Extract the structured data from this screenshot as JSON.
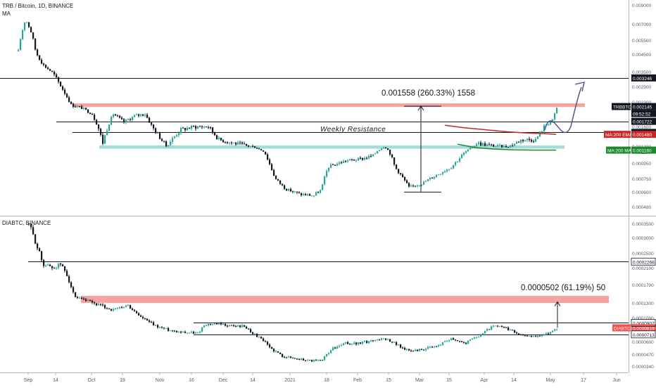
{
  "top_pane": {
    "symbol_line": "TRB / Bitcoin, 1D, BINANCE",
    "indicator_label": "MA"
  },
  "bottom_pane": {
    "symbol_line": "DIABTC, BINANCE"
  },
  "colors": {
    "up": "#26a69a",
    "down": "#131722",
    "resistance_zone": "#f7a1a1",
    "support_zone": "#a3dcd6",
    "ema200": "#c62828",
    "ma200": "#1b8a2f",
    "projection": "#4a4a8c",
    "label_black": "#131722"
  },
  "chart_data": [
    {
      "type": "candlestick",
      "symbol": "TRBBTC",
      "exchange": "BINANCE",
      "timeframe": "1D",
      "y_ticks": [
        "0.009000",
        "0.007000",
        "0.005500",
        "0.004500",
        "0.003500",
        "0.002900",
        "0.002300",
        "0.001900",
        "0.001600",
        "0.001300",
        "0.001100",
        "0.000950",
        "0.000750",
        "0.000600",
        "0.000480"
      ],
      "y_tick_values": [
        0.009,
        0.007,
        0.0055,
        0.0045,
        0.0035,
        0.0029,
        0.0023,
        0.0019,
        0.0016,
        0.0013,
        0.0011,
        0.00095,
        0.00075,
        0.0006,
        0.00048
      ],
      "horizontal_levels": [
        0.003246,
        0.001722,
        0.00151
      ],
      "resistance_zone": [
        0.00213,
        0.00225
      ],
      "support_zone": [
        0.00121,
        0.00131
      ],
      "text_annotation": "Weekly Resistance",
      "measure": {
        "label": "0.001558 (260.33%) 1558",
        "from": 0.000598,
        "to": 0.002156
      },
      "price_labels": [
        {
          "text": "0.003246",
          "value": 0.003246,
          "kind": "level"
        },
        {
          "text": "TRBBTC",
          "value": 0.002145,
          "kind": "last-name"
        },
        {
          "text": "0.002145",
          "value": 0.002145,
          "kind": "last"
        },
        {
          "text": "09:52:52",
          "value": 0.002145,
          "kind": "countdown"
        },
        {
          "text": "0.001722",
          "value": 0.001722,
          "kind": "level"
        },
        {
          "text": "0.001510",
          "value": 0.00151,
          "kind": "level"
        },
        {
          "text": "MA:200 EMA",
          "value": 0.00148,
          "kind": "ema-name"
        },
        {
          "text": "0.001480",
          "value": 0.00148,
          "kind": "ema"
        },
        {
          "text": "MA:200 MA",
          "value": 0.00116,
          "kind": "ma-name"
        },
        {
          "text": "0.001160",
          "value": 0.00116,
          "kind": "ma"
        }
      ],
      "ema200_label": "MA:200 EMA",
      "ma200_label": "MA:200 MA",
      "last_price": 0.002145
    },
    {
      "type": "candlestick",
      "symbol": "DIABTC",
      "exchange": "BINANCE",
      "y_ticks": [
        "0.0003500",
        "0.0003000",
        "0.0002500",
        "0.0002100",
        "0.0001700",
        "0.0001300",
        "0.0001000",
        "0.0000800",
        "0.0000600",
        "0.0000470",
        "0.0000340"
      ],
      "y_tick_values": [
        0.00035,
        0.0003,
        0.00025,
        0.00021,
        0.00017,
        0.00013,
        0.0001,
        8e-05,
        6e-05,
        4.7e-05,
        3.4e-05
      ],
      "horizontal_levels": [
        0.0002266,
        9.07e-05,
        7.13e-05
      ],
      "resistance_zone": [
        0.00013,
        0.0001453
      ],
      "measure": {
        "label": "0.0000502 (61.19%) 50",
        "from": 8.19e-05,
        "to": 0.0001321
      },
      "price_labels": [
        {
          "text": "0.0002266",
          "value": 0.0002266,
          "kind": "level"
        },
        {
          "text": "0.0000907",
          "value": 9.07e-05,
          "kind": "level"
        },
        {
          "text": "DIABTC",
          "value": 8.19e-05,
          "kind": "last-name"
        },
        {
          "text": "0.0000819",
          "value": 8.19e-05,
          "kind": "last"
        },
        {
          "text": "0.0000713",
          "value": 7.13e-05,
          "kind": "level"
        }
      ],
      "last_price": 8.19e-05
    }
  ],
  "time_axis": [
    "Sep",
    "14",
    "Oct",
    "19",
    "Nov",
    "16",
    "Dec",
    "14",
    "2021",
    "18",
    "Feb",
    "15",
    "Mar",
    "15",
    "Apr",
    "14",
    "May",
    "17",
    "Jun"
  ]
}
